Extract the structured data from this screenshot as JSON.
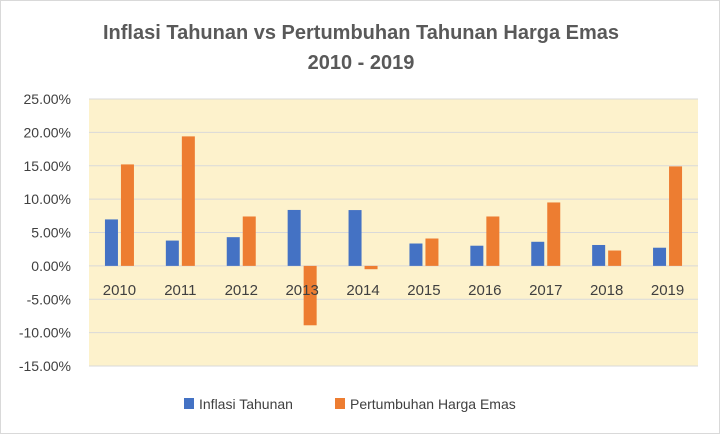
{
  "chart_data": {
    "type": "bar",
    "title_lines": [
      "Inflasi Tahunan vs Pertumbuhan Tahunan Harga Emas",
      "2010 - 2019"
    ],
    "categories": [
      "2010",
      "2011",
      "2012",
      "2013",
      "2014",
      "2015",
      "2016",
      "2017",
      "2018",
      "2019"
    ],
    "series": [
      {
        "name": "Inflasi Tahunan",
        "color": "#4472c4",
        "values": [
          6.96,
          3.79,
          4.3,
          8.38,
          8.36,
          3.35,
          3.02,
          3.61,
          3.13,
          2.72
        ]
      },
      {
        "name": "Pertumbuhan Harga Emas",
        "color": "#ed7d31",
        "values": [
          15.2,
          19.4,
          7.4,
          -8.9,
          -0.5,
          4.1,
          7.4,
          9.5,
          2.3,
          14.9
        ]
      }
    ],
    "ylim": [
      -15,
      25
    ],
    "yticks": [
      "25.00%",
      "20.00%",
      "15.00%",
      "10.00%",
      "5.00%",
      "0.00%",
      "-5.00%",
      "-10.00%",
      "-15.00%"
    ],
    "ytick_values": [
      25,
      20,
      15,
      10,
      5,
      0,
      -5,
      -10,
      -15
    ],
    "plot_background": "#fdf2cc",
    "grid": true,
    "legend_position": "bottom"
  }
}
